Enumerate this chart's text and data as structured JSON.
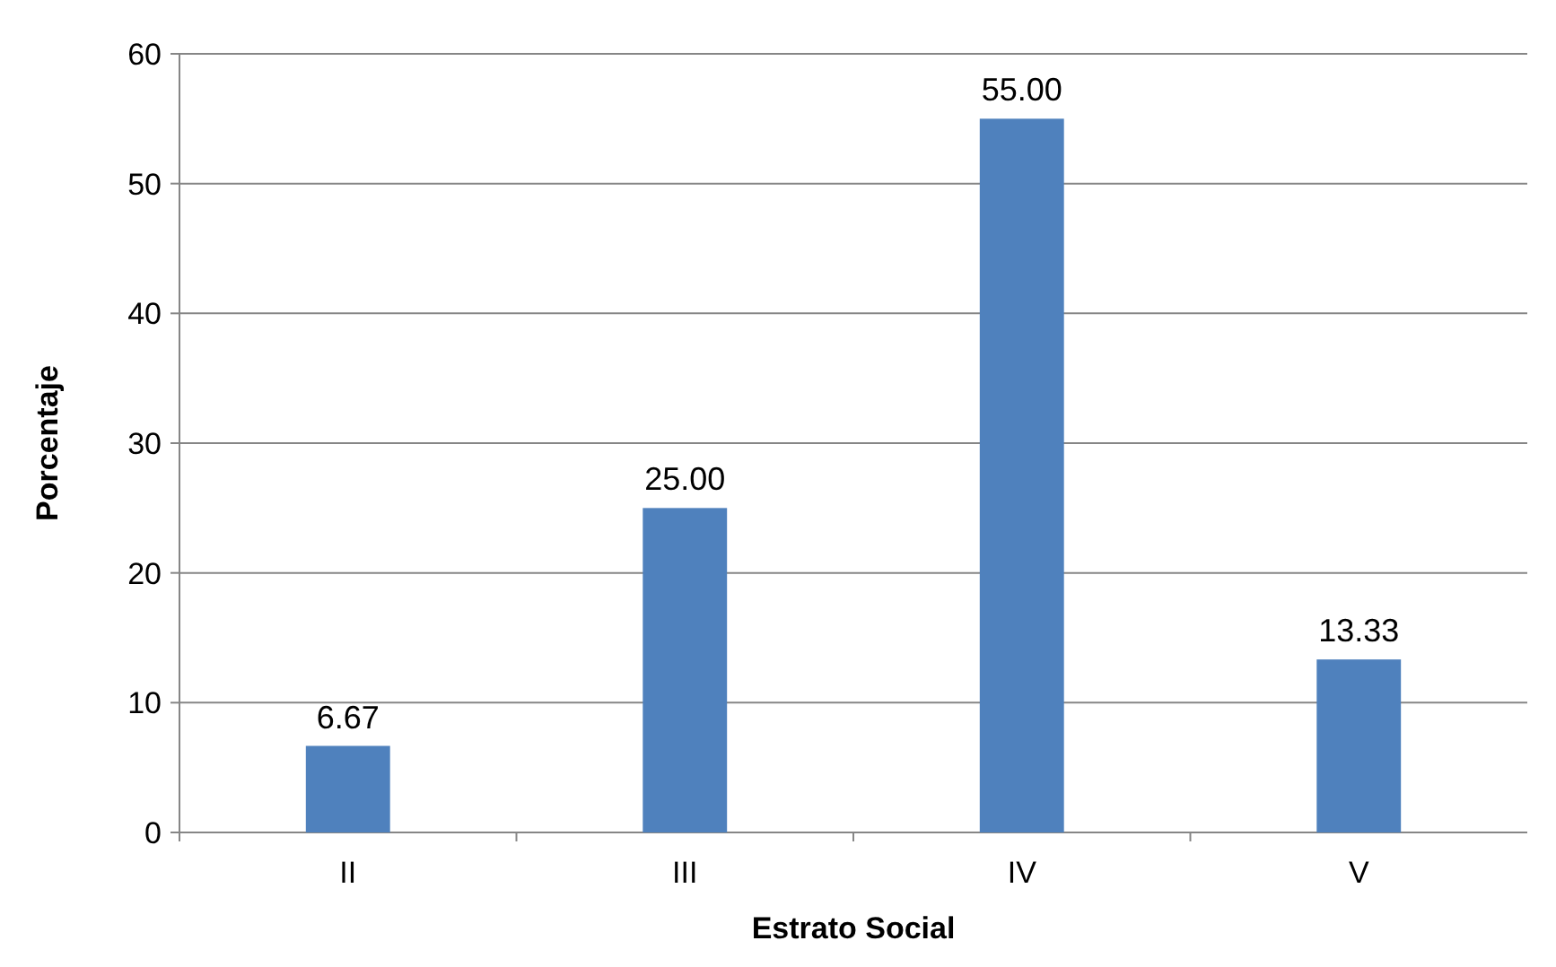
{
  "chart_data": {
    "type": "bar",
    "xlabel": "Estrato Social",
    "ylabel": "Porcentaje",
    "categories": [
      "II",
      "III",
      "IV",
      "V"
    ],
    "values": [
      6.67,
      25,
      55,
      13.33
    ],
    "value_labels": [
      "6.67",
      "25.00",
      "55.00",
      "13.33"
    ],
    "color": "#4f81bd",
    "ylim": [
      0,
      60
    ],
    "yticks": [
      0,
      10,
      20,
      30,
      40,
      50,
      60
    ],
    "grid": "y"
  }
}
